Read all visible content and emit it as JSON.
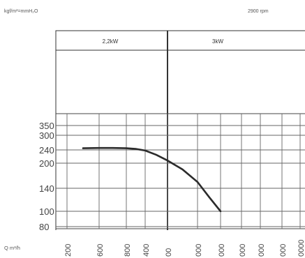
{
  "header": {
    "unit_label": "kgf/m²=mmH₂O",
    "speed_label": "2900 rpm"
  },
  "power_columns": [
    "2,2kW",
    "3kW"
  ],
  "chart_data": {
    "type": "line",
    "title": "",
    "ylabel": "kgf/m²=mmH₂O",
    "xlabel": "Q m³/h",
    "y_ticks": [
      80,
      100,
      140,
      200,
      240,
      300,
      350
    ],
    "x_ticks": [
      "200",
      "600",
      "800",
      "400",
      "00",
      "000",
      "000",
      "000",
      "000",
      "000",
      "0000"
    ],
    "series": [
      {
        "x": [
          0.5,
          1,
          1.5,
          2,
          2.5,
          3,
          3.5,
          4,
          4.5,
          5,
          5.5,
          6
        ],
        "y": [
          247,
          248,
          248,
          247,
          244,
          238,
          225,
          208,
          185,
          155,
          125,
          100
        ]
      }
    ],
    "grid": true
  }
}
